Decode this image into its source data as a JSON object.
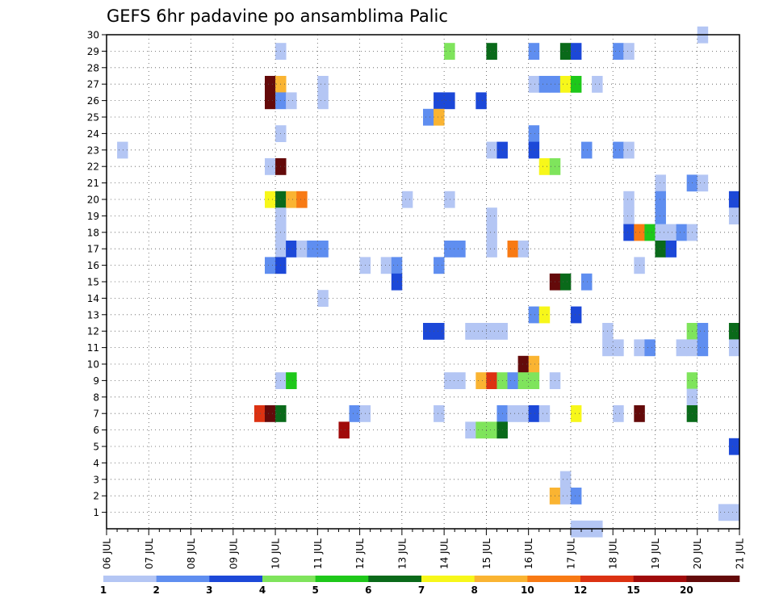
{
  "chart_data": {
    "type": "heatmap",
    "title": "GEFS 6hr padavine po ansamblima Palic",
    "xlabel": "",
    "ylabel": "",
    "x_tick_labels": [
      "06 JUL",
      "07 JUL",
      "08 JUL",
      "09 JUL",
      "10 JUL",
      "11 JUL",
      "12 JUL",
      "13 JUL",
      "14 JUL",
      "15 JUL",
      "16 JUL",
      "17 JUL",
      "18 JUL",
      "19 JUL",
      "20 JUL",
      "21 JUL"
    ],
    "xlim_days": [
      6,
      21
    ],
    "step_hours": 6,
    "y_tick_labels": [
      "1",
      "2",
      "3",
      "4",
      "5",
      "6",
      "7",
      "8",
      "9",
      "10",
      "11",
      "12",
      "13",
      "14",
      "15",
      "16",
      "17",
      "18",
      "19",
      "20",
      "21",
      "22",
      "23",
      "24",
      "25",
      "26",
      "27",
      "28",
      "29",
      "30"
    ],
    "ylim": [
      0,
      30
    ],
    "grid": true,
    "colorbar": {
      "labels": [
        "1",
        "2",
        "3",
        "4",
        "5",
        "6",
        "7",
        "8",
        "10",
        "12",
        "15",
        "20"
      ],
      "colors": [
        "#b4c6f4",
        "#5f8ef0",
        "#1c48d8",
        "#7fe45c",
        "#1ec81a",
        "#0a6a1a",
        "#f7f71a",
        "#fab432",
        "#f87a14",
        "#dc3212",
        "#a00a0a",
        "#640a0a"
      ]
    },
    "cells_note": "each cell: member (1-30), day (JUL, fractional = 6h step start), precipitation class value (colorbar bin lower bound)",
    "cells": [
      {
        "member": 30,
        "day": 20.0,
        "value": 1
      },
      {
        "member": 29,
        "day": 10.0,
        "value": 1
      },
      {
        "member": 29,
        "day": 14.0,
        "value": 4
      },
      {
        "member": 29,
        "day": 15.0,
        "value": 6
      },
      {
        "member": 29,
        "day": 16.0,
        "value": 2
      },
      {
        "member": 29,
        "day": 16.75,
        "value": 6
      },
      {
        "member": 29,
        "day": 17.0,
        "value": 3
      },
      {
        "member": 29,
        "day": 18.0,
        "value": 2
      },
      {
        "member": 29,
        "day": 18.25,
        "value": 1
      },
      {
        "member": 27,
        "day": 9.75,
        "value": 20
      },
      {
        "member": 27,
        "day": 10.0,
        "value": 8
      },
      {
        "member": 27,
        "day": 11.0,
        "value": 1
      },
      {
        "member": 27,
        "day": 16.0,
        "value": 1
      },
      {
        "member": 27,
        "day": 16.25,
        "value": 2
      },
      {
        "member": 27,
        "day": 16.5,
        "value": 2
      },
      {
        "member": 27,
        "day": 16.75,
        "value": 7
      },
      {
        "member": 27,
        "day": 17.0,
        "value": 5
      },
      {
        "member": 27,
        "day": 17.5,
        "value": 1
      },
      {
        "member": 26,
        "day": 9.75,
        "value": 20
      },
      {
        "member": 26,
        "day": 10.0,
        "value": 2
      },
      {
        "member": 26,
        "day": 10.25,
        "value": 1
      },
      {
        "member": 26,
        "day": 11.0,
        "value": 1
      },
      {
        "member": 26,
        "day": 13.75,
        "value": 3
      },
      {
        "member": 26,
        "day": 14.0,
        "value": 3
      },
      {
        "member": 26,
        "day": 14.75,
        "value": 3
      },
      {
        "member": 25,
        "day": 13.5,
        "value": 2
      },
      {
        "member": 25,
        "day": 13.75,
        "value": 8
      },
      {
        "member": 24,
        "day": 10.0,
        "value": 1
      },
      {
        "member": 24,
        "day": 16.0,
        "value": 2
      },
      {
        "member": 23,
        "day": 6.25,
        "value": 1
      },
      {
        "member": 23,
        "day": 15.0,
        "value": 1
      },
      {
        "member": 23,
        "day": 15.25,
        "value": 3
      },
      {
        "member": 23,
        "day": 16.0,
        "value": 3
      },
      {
        "member": 23,
        "day": 17.25,
        "value": 2
      },
      {
        "member": 23,
        "day": 18.0,
        "value": 2
      },
      {
        "member": 23,
        "day": 18.25,
        "value": 1
      },
      {
        "member": 22,
        "day": 9.75,
        "value": 1
      },
      {
        "member": 22,
        "day": 10.0,
        "value": 20
      },
      {
        "member": 22,
        "day": 16.25,
        "value": 7
      },
      {
        "member": 22,
        "day": 16.5,
        "value": 4
      },
      {
        "member": 21,
        "day": 19.0,
        "value": 1
      },
      {
        "member": 21,
        "day": 19.75,
        "value": 2
      },
      {
        "member": 21,
        "day": 20.0,
        "value": 1
      },
      {
        "member": 20,
        "day": 9.75,
        "value": 7
      },
      {
        "member": 20,
        "day": 10.0,
        "value": 6
      },
      {
        "member": 20,
        "day": 10.25,
        "value": 8
      },
      {
        "member": 20,
        "day": 10.5,
        "value": 10
      },
      {
        "member": 20,
        "day": 13.0,
        "value": 1
      },
      {
        "member": 20,
        "day": 14.0,
        "value": 1
      },
      {
        "member": 20,
        "day": 18.25,
        "value": 1
      },
      {
        "member": 20,
        "day": 19.0,
        "value": 2
      },
      {
        "member": 20,
        "day": 20.75,
        "value": 3
      },
      {
        "member": 19,
        "day": 10.0,
        "value": 1
      },
      {
        "member": 19,
        "day": 15.0,
        "value": 1
      },
      {
        "member": 19,
        "day": 18.25,
        "value": 1
      },
      {
        "member": 19,
        "day": 19.0,
        "value": 2
      },
      {
        "member": 19,
        "day": 20.75,
        "value": 1
      },
      {
        "member": 18,
        "day": 10.0,
        "value": 1
      },
      {
        "member": 18,
        "day": 15.0,
        "value": 1
      },
      {
        "member": 18,
        "day": 18.25,
        "value": 3
      },
      {
        "member": 18,
        "day": 18.5,
        "value": 10
      },
      {
        "member": 18,
        "day": 18.75,
        "value": 5
      },
      {
        "member": 18,
        "day": 19.0,
        "value": 1
      },
      {
        "member": 18,
        "day": 19.25,
        "value": 1
      },
      {
        "member": 18,
        "day": 19.5,
        "value": 2
      },
      {
        "member": 18,
        "day": 19.75,
        "value": 1
      },
      {
        "member": 17,
        "day": 10.0,
        "value": 1
      },
      {
        "member": 17,
        "day": 10.25,
        "value": 3
      },
      {
        "member": 17,
        "day": 10.5,
        "value": 1
      },
      {
        "member": 17,
        "day": 10.75,
        "value": 2
      },
      {
        "member": 17,
        "day": 11.0,
        "value": 2
      },
      {
        "member": 17,
        "day": 14.0,
        "value": 2
      },
      {
        "member": 17,
        "day": 14.25,
        "value": 2
      },
      {
        "member": 17,
        "day": 15.0,
        "value": 1
      },
      {
        "member": 17,
        "day": 15.5,
        "value": 10
      },
      {
        "member": 17,
        "day": 15.75,
        "value": 1
      },
      {
        "member": 17,
        "day": 19.0,
        "value": 6
      },
      {
        "member": 17,
        "day": 19.25,
        "value": 3
      },
      {
        "member": 16,
        "day": 9.75,
        "value": 2
      },
      {
        "member": 16,
        "day": 10.0,
        "value": 3
      },
      {
        "member": 16,
        "day": 12.0,
        "value": 1
      },
      {
        "member": 16,
        "day": 12.5,
        "value": 1
      },
      {
        "member": 16,
        "day": 12.75,
        "value": 2
      },
      {
        "member": 16,
        "day": 13.75,
        "value": 2
      },
      {
        "member": 16,
        "day": 18.5,
        "value": 1
      },
      {
        "member": 15,
        "day": 12.75,
        "value": 3
      },
      {
        "member": 15,
        "day": 16.5,
        "value": 20
      },
      {
        "member": 15,
        "day": 16.75,
        "value": 6
      },
      {
        "member": 15,
        "day": 17.25,
        "value": 2
      },
      {
        "member": 14,
        "day": 11.0,
        "value": 1
      },
      {
        "member": 13,
        "day": 16.0,
        "value": 2
      },
      {
        "member": 13,
        "day": 16.25,
        "value": 7
      },
      {
        "member": 13,
        "day": 17.0,
        "value": 3
      },
      {
        "member": 12,
        "day": 13.5,
        "value": 3
      },
      {
        "member": 12,
        "day": 13.75,
        "value": 3
      },
      {
        "member": 12,
        "day": 14.5,
        "value": 1
      },
      {
        "member": 12,
        "day": 14.75,
        "value": 1
      },
      {
        "member": 12,
        "day": 15.0,
        "value": 1
      },
      {
        "member": 12,
        "day": 15.25,
        "value": 1
      },
      {
        "member": 12,
        "day": 17.75,
        "value": 1
      },
      {
        "member": 12,
        "day": 19.75,
        "value": 4
      },
      {
        "member": 12,
        "day": 20.0,
        "value": 2
      },
      {
        "member": 12,
        "day": 20.75,
        "value": 6
      },
      {
        "member": 11,
        "day": 17.75,
        "value": 1
      },
      {
        "member": 11,
        "day": 18.0,
        "value": 1
      },
      {
        "member": 11,
        "day": 18.5,
        "value": 1
      },
      {
        "member": 11,
        "day": 18.75,
        "value": 2
      },
      {
        "member": 11,
        "day": 19.5,
        "value": 1
      },
      {
        "member": 11,
        "day": 19.75,
        "value": 1
      },
      {
        "member": 11,
        "day": 20.0,
        "value": 2
      },
      {
        "member": 11,
        "day": 20.75,
        "value": 1
      },
      {
        "member": 10,
        "day": 15.75,
        "value": 20
      },
      {
        "member": 10,
        "day": 16.0,
        "value": 8
      },
      {
        "member": 9,
        "day": 10.0,
        "value": 1
      },
      {
        "member": 9,
        "day": 10.25,
        "value": 5
      },
      {
        "member": 9,
        "day": 14.0,
        "value": 1
      },
      {
        "member": 9,
        "day": 14.25,
        "value": 1
      },
      {
        "member": 9,
        "day": 14.75,
        "value": 8
      },
      {
        "member": 9,
        "day": 15.0,
        "value": 12
      },
      {
        "member": 9,
        "day": 15.25,
        "value": 4
      },
      {
        "member": 9,
        "day": 15.5,
        "value": 2
      },
      {
        "member": 9,
        "day": 15.75,
        "value": 4
      },
      {
        "member": 9,
        "day": 16.0,
        "value": 4
      },
      {
        "member": 9,
        "day": 16.5,
        "value": 1
      },
      {
        "member": 9,
        "day": 19.75,
        "value": 4
      },
      {
        "member": 8,
        "day": 19.75,
        "value": 1
      },
      {
        "member": 7,
        "day": 9.5,
        "value": 12
      },
      {
        "member": 7,
        "day": 9.75,
        "value": 20
      },
      {
        "member": 7,
        "day": 10.0,
        "value": 6
      },
      {
        "member": 7,
        "day": 11.75,
        "value": 2
      },
      {
        "member": 7,
        "day": 12.0,
        "value": 1
      },
      {
        "member": 7,
        "day": 13.75,
        "value": 1
      },
      {
        "member": 7,
        "day": 15.25,
        "value": 2
      },
      {
        "member": 7,
        "day": 15.5,
        "value": 1
      },
      {
        "member": 7,
        "day": 15.75,
        "value": 1
      },
      {
        "member": 7,
        "day": 16.0,
        "value": 3
      },
      {
        "member": 7,
        "day": 16.25,
        "value": 1
      },
      {
        "member": 7,
        "day": 17.0,
        "value": 7
      },
      {
        "member": 7,
        "day": 18.0,
        "value": 1
      },
      {
        "member": 7,
        "day": 18.5,
        "value": 20
      },
      {
        "member": 7,
        "day": 19.75,
        "value": 6
      },
      {
        "member": 6,
        "day": 11.5,
        "value": 15
      },
      {
        "member": 6,
        "day": 14.5,
        "value": 1
      },
      {
        "member": 6,
        "day": 14.75,
        "value": 4
      },
      {
        "member": 6,
        "day": 15.0,
        "value": 4
      },
      {
        "member": 6,
        "day": 15.25,
        "value": 6
      },
      {
        "member": 5,
        "day": 20.75,
        "value": 3
      },
      {
        "member": 3,
        "day": 16.75,
        "value": 1
      },
      {
        "member": 2,
        "day": 16.5,
        "value": 8
      },
      {
        "member": 2,
        "day": 16.75,
        "value": 1
      },
      {
        "member": 2,
        "day": 17.0,
        "value": 2
      },
      {
        "member": 1,
        "day": 20.5,
        "value": 1
      },
      {
        "member": 1,
        "day": 20.75,
        "value": 1
      },
      {
        "member": 0,
        "day": 17.0,
        "value": 1
      },
      {
        "member": 0,
        "day": 17.25,
        "value": 1
      },
      {
        "member": 0,
        "day": 17.5,
        "value": 1
      }
    ]
  }
}
